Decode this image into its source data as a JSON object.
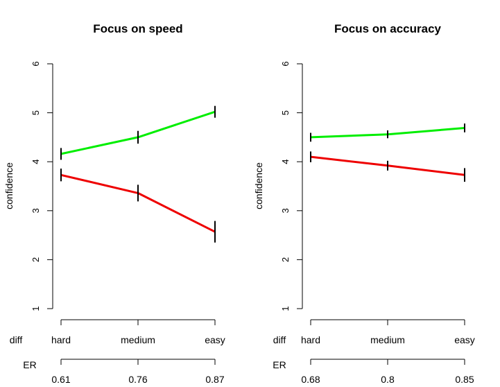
{
  "chart_data": [
    {
      "type": "line",
      "title": "Focus on speed",
      "ylabel": "confidence",
      "ylim": [
        1,
        6
      ],
      "yticks": [
        1,
        2,
        3,
        4,
        5,
        6
      ],
      "x_axis_name": "diff",
      "categories": [
        "hard",
        "medium",
        "easy"
      ],
      "second_axis_name": "ER",
      "second_axis_labels": [
        "0.61",
        "0.76",
        "0.87"
      ],
      "series": [
        {
          "color": "#00ee00",
          "values": [
            4.16,
            4.5,
            5.02
          ],
          "errors": [
            0.12,
            0.13,
            0.12
          ]
        },
        {
          "color": "#ee0000",
          "values": [
            3.73,
            3.36,
            2.57
          ],
          "errors": [
            0.13,
            0.17,
            0.22
          ]
        }
      ]
    },
    {
      "type": "line",
      "title": "Focus on accuracy",
      "ylabel": "confidence",
      "ylim": [
        1,
        6
      ],
      "yticks": [
        1,
        2,
        3,
        4,
        5,
        6
      ],
      "x_axis_name": "diff",
      "categories": [
        "hard",
        "medium",
        "easy"
      ],
      "second_axis_name": "ER",
      "second_axis_labels": [
        "0.68",
        "0.8",
        "0.85"
      ],
      "series": [
        {
          "color": "#00ee00",
          "values": [
            4.5,
            4.56,
            4.69
          ],
          "errors": [
            0.09,
            0.08,
            0.09
          ]
        },
        {
          "color": "#ee0000",
          "values": [
            4.1,
            3.92,
            3.73
          ],
          "errors": [
            0.11,
            0.1,
            0.14
          ]
        }
      ]
    }
  ]
}
